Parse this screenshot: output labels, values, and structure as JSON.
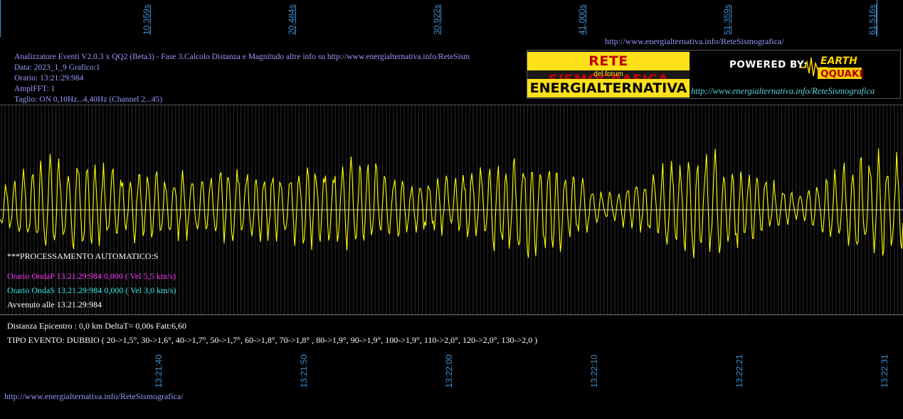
{
  "colors": {
    "axis_label": "#3f8fd0",
    "info_text": "#9a9aff",
    "onda_p": "#ff33ff",
    "onda_s": "#33e8e8",
    "trace": "#ffff00",
    "white": "#ffffff"
  },
  "top_axis": {
    "ticks": [
      "10,359s",
      "20,484s",
      "30,922s",
      "41,000s",
      "51,359s",
      "61,516s"
    ]
  },
  "bottom_axis": {
    "ticks": [
      "13:21:40",
      "13:21:50",
      "13:22:00",
      "13:22:10",
      "13:22:21",
      "13:22:31"
    ]
  },
  "header_url": "http://www.energialternativa.info/ReteSismografica/",
  "info": {
    "line1": "Analizzatore Eventi V2.0.3 x QQ2 (Beta3) - Fase 3.Calcolo Distanza e Magnitudo altre info su http://www.energialternativa.info/ReteSism",
    "line2": "Data: 2023_1_9 Grafico:1",
    "line3": "Orario: 13:21:29:984",
    "line4": "AmplFFT: 1",
    "line5": "Taglio: ON 0,10Hz...4,40Hz       (Channel 2...45)"
  },
  "banner": {
    "title1": "RETE SISMOGRAFICA",
    "title2": "del forum",
    "title3": "ENERGIALTERNATIVA",
    "powered": "POWERED BY:",
    "logo_top": "EARTH",
    "logo_bottom": "QQUAKE",
    "url": "http://www.energialternativa.info/ReteSismografica"
  },
  "status": {
    "processing": "***PROCESSAMENTO AUTOMATICO:S",
    "onda_p": "Orario OndaP 13.21.29:984  0,000 ( Vel 5,5 km/s)",
    "onda_s": "Orario OndaS 13.21.29:984  0,000 ( Vel 3,0 km/s)",
    "avvenuto": "Avvenuto alle 13.21.29:984",
    "distanza": "Distanza Epicentro : 0,0 km DeltaT= 0,00s  Fatt:6,60",
    "tipo_evento": "TIPO EVENTO: DUBBIO ( 20->1,5°, 30->1,6°, 40->1,7°, 50->1,7°, 60->1,8°, 70->1,8° , 80->1,9°, 90->1,9°, 100->1,9°, 110->2,0°, 120->2,0°, 130->2,0 )"
  },
  "footer_url": "http://www.energialternativa.info/ReteSismografica/"
}
